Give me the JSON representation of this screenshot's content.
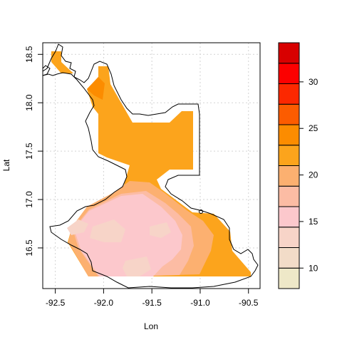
{
  "chart_data": {
    "type": "heatmap",
    "xlabel": "Lon",
    "ylabel": "Lat",
    "xlim": [
      -92.63,
      -90.38
    ],
    "ylim": [
      16.08,
      18.62
    ],
    "x_ticks": [
      -92.5,
      -92.0,
      -91.5,
      -91.0,
      -90.5
    ],
    "x_tick_labels": [
      "-92.5",
      "-92.0",
      "-91.5",
      "-91.0",
      "-90.5"
    ],
    "y_ticks": [
      16.5,
      17.0,
      17.5,
      18.0,
      18.5
    ],
    "y_tick_labels": [
      "16.5",
      "17.0",
      "17.5",
      "18.0",
      "18.5"
    ],
    "grid": true,
    "colorbar": {
      "range": [
        7.8,
        34.2
      ],
      "breaks": [
        7.8,
        10,
        12.2,
        14.4,
        16.6,
        18.8,
        21,
        23.2,
        25.4,
        27.6,
        29.8,
        32,
        34.2
      ],
      "colors": [
        "#EEE8C8",
        "#F2DCC8",
        "#F7D4C8",
        "#FCC8CC",
        "#FCBCA4",
        "#FCB070",
        "#FCA41C",
        "#FC8C00",
        "#FC5C00",
        "#FC2800",
        "#FC0000",
        "#D80000",
        "#B00000"
      ],
      "tick_values": [
        10,
        15,
        20,
        25,
        30
      ],
      "tick_labels": [
        "10",
        "15",
        "20",
        "25",
        "30"
      ]
    }
  }
}
